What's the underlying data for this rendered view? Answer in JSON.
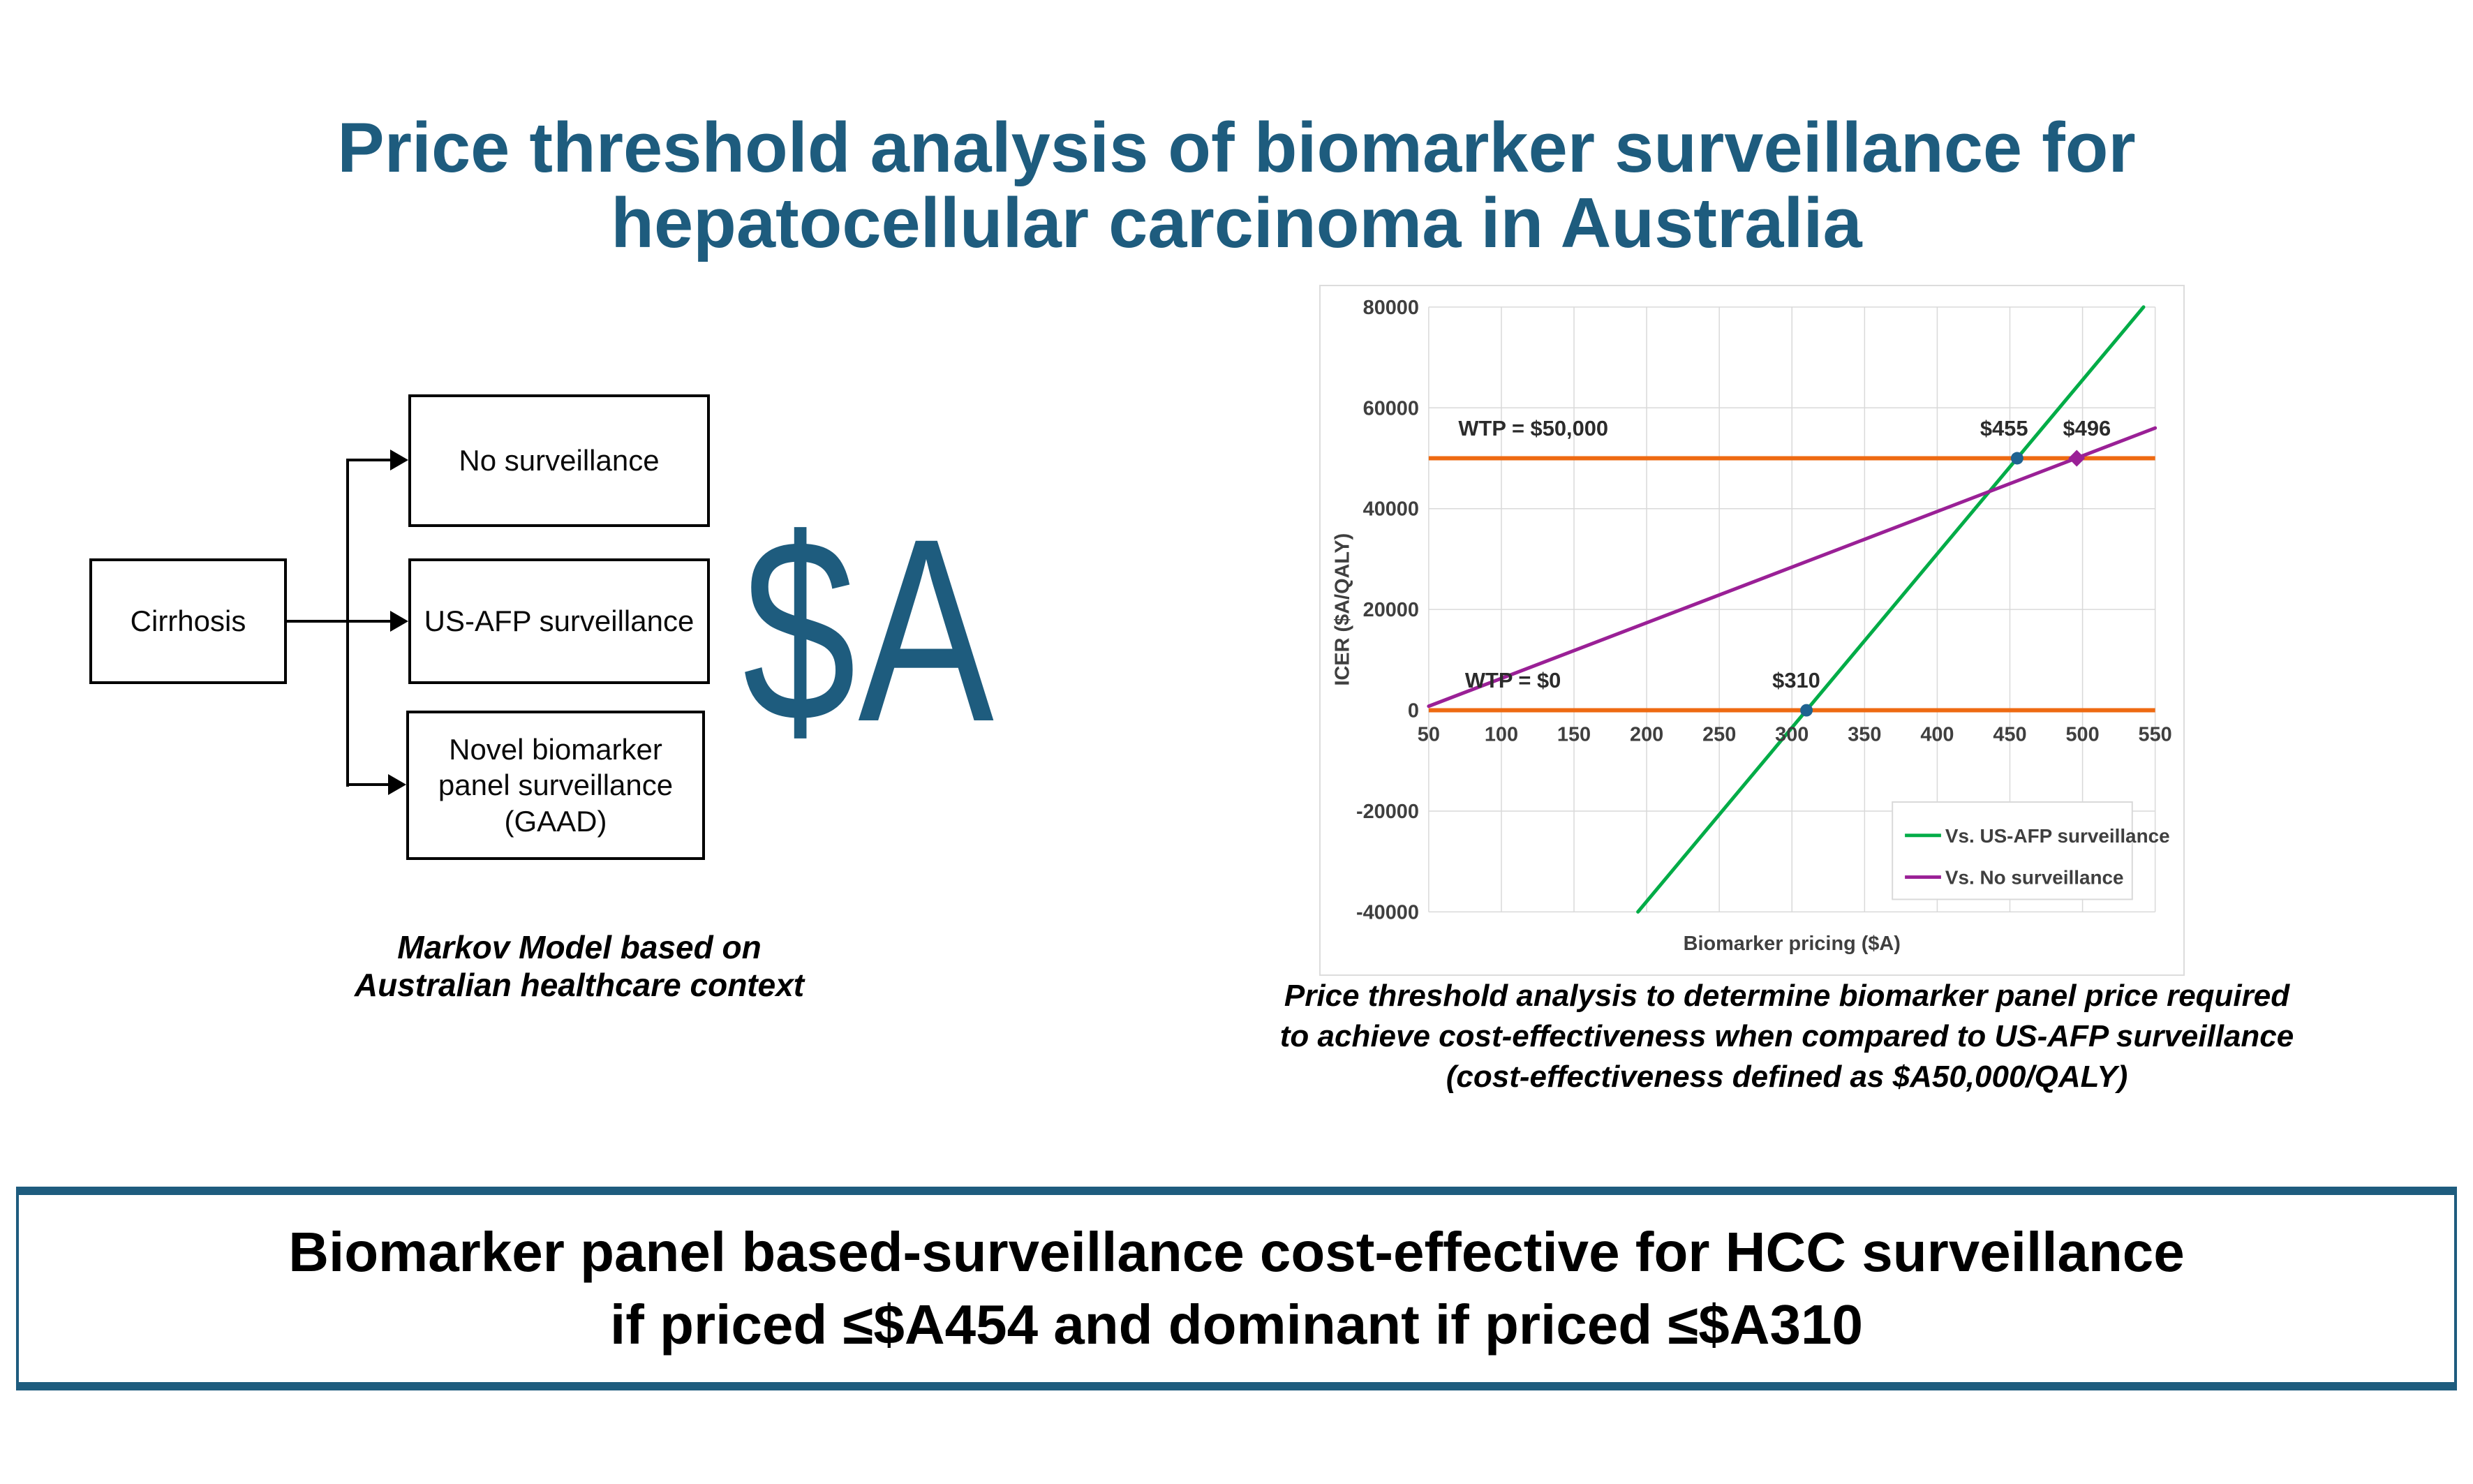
{
  "title": {
    "line1": "Price threshold analysis of biomarker surveillance for",
    "line2": "hepatocellular carcinoma in Australia",
    "color": "#1E5C7E"
  },
  "diagram": {
    "cirrhosis_label": "Cirrhosis",
    "branch_no_surveillance": "No surveillance",
    "branch_us_afp": "US-AFP surveillance",
    "branch_biomarker": "Novel biomarker panel surveillance (GAAD)",
    "currency_note": "$A",
    "caption_line1": "Markov Model based on",
    "caption_line2": "Australian healthcare context"
  },
  "chart_caption": {
    "line1": "Price threshold analysis to determine biomarker panel price required",
    "line2": "to achieve cost-effectiveness  when compared to US-AFP surveillance",
    "line3": "(cost-effectiveness defined as $A50,000/QALY)"
  },
  "chart_data": {
    "type": "line",
    "xlabel": "Biomarker pricing ($A)",
    "ylabel": "ICER ($A/QALY)",
    "xlim": [
      50,
      550
    ],
    "ylim": [
      -40000,
      80000
    ],
    "x_ticks": [
      50,
      100,
      150,
      200,
      250,
      300,
      350,
      400,
      450,
      500,
      550
    ],
    "y_ticks": [
      -40000,
      -20000,
      0,
      20000,
      40000,
      60000,
      80000
    ],
    "grid": true,
    "grid_color": "#d9d9d9",
    "tick_color": "#3f3f3f",
    "series": [
      {
        "name": "Vs. US-AFP surveillance",
        "color": "#00AC47",
        "endpoints": [
          [
            194,
            -40000
          ],
          [
            542,
            80000
          ]
        ],
        "markers": [
          {
            "x": 310,
            "y": 0,
            "shape": "circle",
            "color": "#1F6391"
          },
          {
            "x": 455,
            "y": 50000,
            "shape": "circle",
            "color": "#1F6391"
          }
        ]
      },
      {
        "name": "Vs. No surveillance",
        "color": "#9A2096",
        "endpoints": [
          [
            50,
            800
          ],
          [
            550,
            56000
          ]
        ],
        "markers": [
          {
            "x": 496,
            "y": 50000,
            "shape": "diamond",
            "color": "#9A2096"
          }
        ]
      }
    ],
    "reference_lines": [
      {
        "y": 50000,
        "color": "#EE6A12"
      },
      {
        "y": 0,
        "color": "#EE6A12"
      }
    ],
    "annotations": [
      {
        "text": "WTP = $50,000",
        "x": 122,
        "y": 54500
      },
      {
        "text": "$455",
        "x": 446,
        "y": 54500
      },
      {
        "text": "$496",
        "x": 503,
        "y": 54500
      },
      {
        "text": "WTP = $0",
        "x": 108,
        "y": 4500
      },
      {
        "text": "$310",
        "x": 303,
        "y": 4500
      }
    ],
    "legend": {
      "position": "bottom-right"
    }
  },
  "banner": {
    "line1": "Biomarker panel based-surveillance cost-effective for HCC surveillance",
    "line2": "if priced ≤$A454 and dominant if priced ≤$A310",
    "border_color": "#1E5C7E"
  }
}
